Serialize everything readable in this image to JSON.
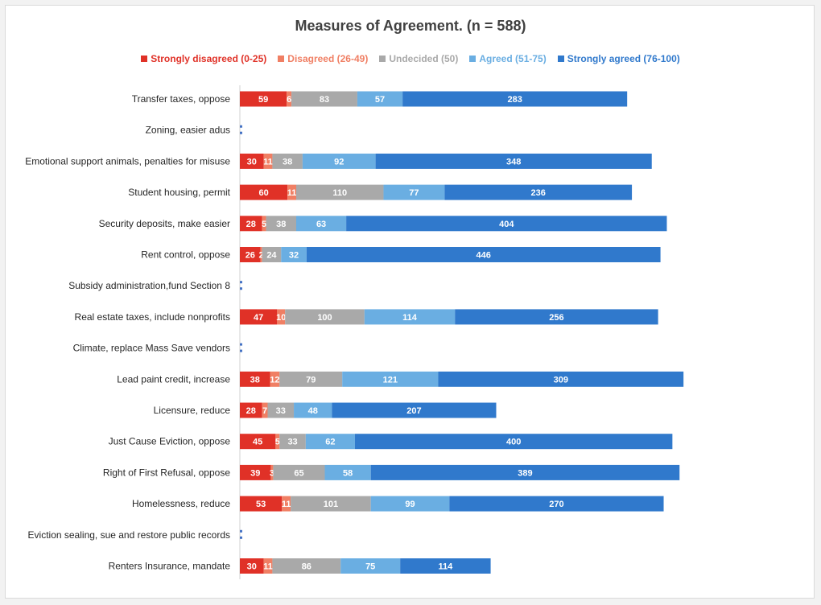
{
  "chart_data": {
    "type": "bar",
    "orientation": "horizontal",
    "stacked": true,
    "title": "Measures of Agreement. (n = 588)",
    "legend_position": "top",
    "grid": false,
    "categories": [
      "Transfer taxes, oppose",
      "Zoning, easier adus",
      "Emotional support animals, penalties for misuse",
      "Student housing, permit",
      "Security deposits, make easier",
      "Rent control, oppose",
      "Subsidy administration,fund Section 8",
      "Real estate taxes, include nonprofits",
      "Climate, replace Mass Save vendors",
      "Lead paint credit, increase",
      "Licensure, reduce",
      "Just Cause Eviction, oppose",
      "Right of First Refusal, oppose",
      "Homelessness, reduce",
      "Eviction sealing, sue and restore public records",
      "Renters Insurance, mandate"
    ],
    "series": [
      {
        "name": "Strongly disagreed (0-25)",
        "color": "#e03127",
        "values": [
          59,
          0,
          30,
          60,
          28,
          26,
          0,
          47,
          0,
          38,
          28,
          45,
          39,
          53,
          0,
          30
        ]
      },
      {
        "name": "Disagreed (26-49)",
        "color": "#f07f64",
        "values": [
          6,
          0,
          11,
          11,
          5,
          2,
          0,
          10,
          0,
          12,
          7,
          5,
          3,
          11,
          0,
          11
        ]
      },
      {
        "name": "Undecided (50)",
        "color": "#a9a9a9",
        "values": [
          83,
          0,
          38,
          110,
          38,
          24,
          0,
          100,
          0,
          79,
          33,
          33,
          65,
          101,
          0,
          86
        ]
      },
      {
        "name": "Agreed (51-75)",
        "color": "#6aaee2",
        "values": [
          57,
          0,
          92,
          77,
          63,
          32,
          0,
          114,
          0,
          121,
          48,
          62,
          58,
          99,
          0,
          75
        ]
      },
      {
        "name": "Strongly agreed (76-100)",
        "color": "#3079cc",
        "values": [
          283,
          0,
          348,
          236,
          404,
          446,
          0,
          256,
          0,
          309,
          207,
          400,
          389,
          270,
          0,
          114
        ]
      }
    ],
    "xlim": [
      0,
      600
    ]
  }
}
